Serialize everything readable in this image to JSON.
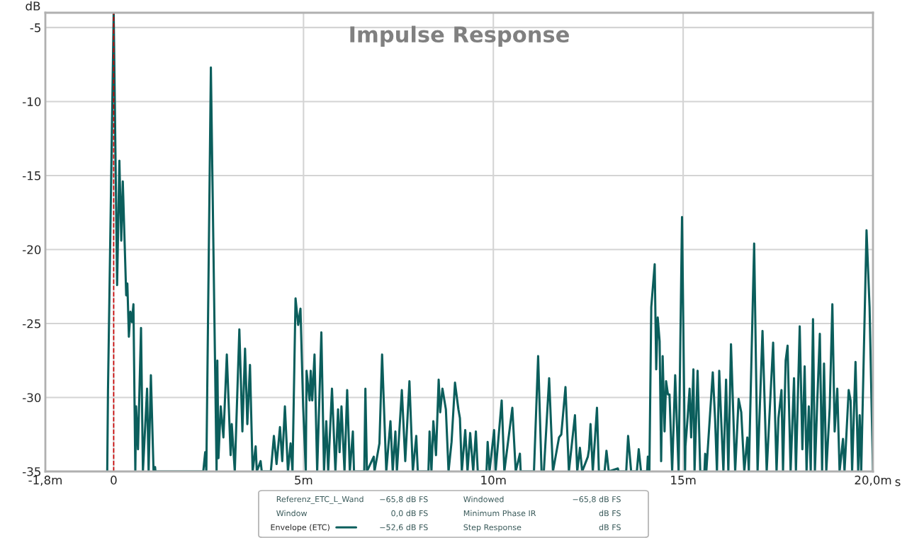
{
  "chart_data": {
    "type": "line",
    "title": "Impulse Response",
    "xlabel": "s",
    "ylabel": "dB",
    "xlim": [
      -1.8,
      20
    ],
    "ylim": [
      -35,
      -4
    ],
    "xticks": [
      {
        "value": -1.8,
        "label": "-1,8m"
      },
      0,
      {
        "value": 5,
        "label": "5m"
      },
      {
        "value": 10,
        "label": "10m"
      },
      {
        "value": 15,
        "label": "15m"
      },
      {
        "value": 20,
        "label": "20,0m"
      }
    ],
    "yticks": [
      -35,
      -30,
      -25,
      -20,
      -15,
      -10,
      -5
    ],
    "grid": true,
    "legend": "bottom",
    "marker": "none",
    "line_style": "solid",
    "ref_lines": [
      {
        "axis": "x",
        "value": 0,
        "color": "#cc0000",
        "line_style": "dashed"
      }
    ],
    "annotations": [
      "Referenz_ETC_L_Wand",
      "−65,8 dB FS",
      "Windowed",
      "−65,8 dB FS",
      "Window",
      "0,0 dB FS",
      "Minimum Phase IR",
      "dB FS",
      "−52,6 dB FS",
      "Step Response",
      "dB FS"
    ],
    "series": [
      {
        "name": "Envelope (ETC)",
        "color": "#0b5e5c",
        "x": [
          -0.17,
          -0.15,
          0,
          0.09,
          0.15,
          0.2,
          0.24,
          0.33,
          0.36,
          0.4,
          0.44,
          0.48,
          0.52,
          0.57,
          0.59,
          0.64,
          0.72,
          0.77,
          0.88,
          0.92,
          0.98,
          1.05,
          1.09,
          1.1,
          2.36,
          2.41,
          2.44,
          2.56,
          2.71,
          2.73,
          2.76,
          2.82,
          2.89,
          2.98,
          3.08,
          3.11,
          3.19,
          3.31,
          3.39,
          3.46,
          3.52,
          3.59,
          3.66,
          3.74,
          3.77,
          3.87,
          3.9,
          4.14,
          4.22,
          4.29,
          4.38,
          4.44,
          4.51,
          4.59,
          4.66,
          4.71,
          4.79,
          4.86,
          4.92,
          4.99,
          5.06,
          5.08,
          5.16,
          5.19,
          5.23,
          5.29,
          5.36,
          5.47,
          5.54,
          5.6,
          5.65,
          5.75,
          5.84,
          5.91,
          5.95,
          6.0,
          6.08,
          6.15,
          6.22,
          6.3,
          6.33,
          6.6,
          6.63,
          6.67,
          6.85,
          6.87,
          7.0,
          7.07,
          7.18,
          7.29,
          7.35,
          7.42,
          7.46,
          7.59,
          7.68,
          7.79,
          7.88,
          7.97,
          8.01,
          8.29,
          8.32,
          8.37,
          8.42,
          8.49,
          8.56,
          8.6,
          8.66,
          8.75,
          8.82,
          8.9,
          8.99,
          9.08,
          9.12,
          9.17,
          9.26,
          9.32,
          9.39,
          9.47,
          9.54,
          9.59,
          9.82,
          9.85,
          9.9,
          10.02,
          10.06,
          10.22,
          10.29,
          10.5,
          10.59,
          10.7,
          10.72,
          11.07,
          11.18,
          11.27,
          11.33,
          11.47,
          11.57,
          11.73,
          11.79,
          11.9,
          11.99,
          12.15,
          12.21,
          12.28,
          12.34,
          12.49,
          12.52,
          12.56,
          12.62,
          12.73,
          12.78,
          12.93,
          12.98,
          13.04,
          13.28,
          13.3,
          13.5,
          13.55,
          13.63,
          13.78,
          13.83,
          13.89,
          14.05,
          14.07,
          14.11,
          14.16,
          14.25,
          14.29,
          14.33,
          14.38,
          14.42,
          14.46,
          14.51,
          14.55,
          14.6,
          14.64,
          14.71,
          14.79,
          14.88,
          14.97,
          15.05,
          15.06,
          15.12,
          15.17,
          15.21,
          15.27,
          15.3,
          15.38,
          15.45,
          15.56,
          15.58,
          15.61,
          15.78,
          15.84,
          15.89,
          15.95,
          16.0,
          16.06,
          16.13,
          16.19,
          16.26,
          16.37,
          16.46,
          16.53,
          16.61,
          16.69,
          16.73,
          16.87,
          16.96,
          17.09,
          17.2,
          17.27,
          17.37,
          17.46,
          17.51,
          17.59,
          17.63,
          17.7,
          17.75,
          17.83,
          17.92,
          17.97,
          18.07,
          18.14,
          18.2,
          18.25,
          18.31,
          18.36,
          18.42,
          18.47,
          18.53,
          18.6,
          18.66,
          18.71,
          18.77,
          18.86,
          18.93,
          18.99,
          19.06,
          19.12,
          19.21,
          19.25,
          19.36,
          19.41,
          19.45,
          19.54,
          19.61,
          19.65,
          19.69,
          19.83,
          19.91,
          20.0
        ],
        "values": [
          -35,
          -29.5,
          -4,
          -22.4,
          -14.0,
          -19.4,
          -15.4,
          -23.1,
          -22.3,
          -25.9,
          -24.2,
          -24.9,
          -23.7,
          -35,
          -30.6,
          -33.5,
          -25.3,
          -35,
          -29.4,
          -35,
          -28.5,
          -35,
          -34.7,
          -35,
          -35,
          -33.7,
          -35,
          -7.7,
          -35,
          -27.5,
          -34.1,
          -30.6,
          -32.7,
          -27.1,
          -33.9,
          -31.8,
          -35,
          -25.4,
          -32.3,
          -26.7,
          -31.8,
          -27.8,
          -35,
          -33.3,
          -35,
          -34.3,
          -35,
          -35,
          -32.6,
          -34.5,
          -32.0,
          -34.3,
          -30.6,
          -35,
          -33.1,
          -35,
          -23.3,
          -25.1,
          -24.0,
          -30.6,
          -35,
          -28.2,
          -30.2,
          -28.2,
          -30.2,
          -27.1,
          -35,
          -25.6,
          -35,
          -31.6,
          -35,
          -29.4,
          -35,
          -30.8,
          -33.7,
          -30.6,
          -35,
          -29.5,
          -35,
          -32.3,
          -35,
          -35,
          -29.4,
          -35,
          -34.0,
          -35,
          -33.1,
          -27.1,
          -35,
          -31.6,
          -35,
          -32.3,
          -35,
          -29.5,
          -34.3,
          -28.9,
          -35,
          -32.6,
          -35,
          -35,
          -32.3,
          -35,
          -31.6,
          -33.9,
          -28.8,
          -31.0,
          -29.4,
          -30.8,
          -35,
          -33.0,
          -29.0,
          -30.8,
          -31.4,
          -35,
          -32.2,
          -35,
          -32.4,
          -35,
          -32.3,
          -35,
          -35,
          -33.0,
          -35,
          -32.2,
          -35,
          -30.2,
          -35,
          -30.7,
          -35,
          -33.8,
          -35,
          -35,
          -27.2,
          -35,
          -35,
          -28.7,
          -35,
          -32.7,
          -32.5,
          -29.3,
          -35,
          -31.2,
          -35,
          -33.4,
          -35,
          -34.0,
          -33.5,
          -31.8,
          -35,
          -30.7,
          -35,
          -35,
          -33.6,
          -35,
          -34.8,
          -35,
          -35,
          -32.6,
          -35,
          -35,
          -33.5,
          -35,
          -35,
          -34.0,
          -35,
          -23.9,
          -21.0,
          -28.1,
          -24.6,
          -26.2,
          -34.3,
          -27.2,
          -32.3,
          -28.9,
          -29.8,
          -29.8,
          -35,
          -28.5,
          -35,
          -17.8,
          -35,
          -33.3,
          -31.3,
          -29.4,
          -32.7,
          -28.1,
          -35,
          -28.2,
          -35,
          -35,
          -33.8,
          -35,
          -28.3,
          -31.4,
          -35,
          -28.2,
          -31.4,
          -35,
          -28.8,
          -35,
          -26.4,
          -35,
          -30.1,
          -31.0,
          -35,
          -32.7,
          -35,
          -19.6,
          -35,
          -25.5,
          -35,
          -31.4,
          -26.3,
          -35,
          -31.4,
          -29.5,
          -35,
          -27.5,
          -26.5,
          -35,
          -28.7,
          -35,
          -25.2,
          -33.5,
          -27.9,
          -35,
          -30.6,
          -35,
          -24.7,
          -35,
          -30.4,
          -25.7,
          -35,
          -27.7,
          -35,
          -30.7,
          -23.7,
          -32.3,
          -29.4,
          -35,
          -32.8,
          -35,
          -29.5,
          -30.2,
          -35,
          -27.6,
          -35,
          -31.2,
          -35,
          -18.7,
          -23.9,
          -35
        ]
      }
    ]
  }
}
